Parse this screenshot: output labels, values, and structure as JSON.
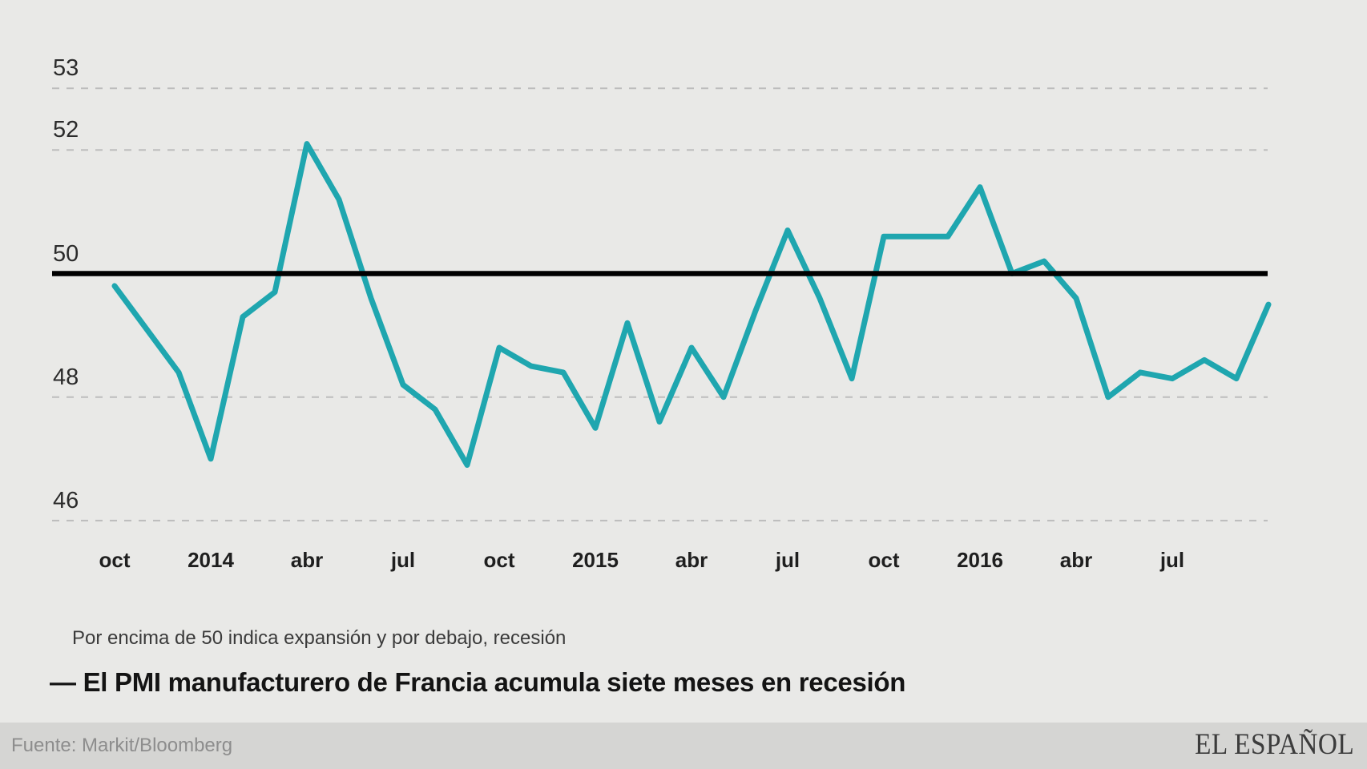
{
  "chart_data": {
    "type": "line",
    "title": "— El PMI manufacturero de Francia acumula siete meses en recesión",
    "subtitle": "Por encima de 50 indica expansión y por debajo, recesión",
    "series_name": "PMI manufacturero de Francia",
    "values": [
      49.8,
      49.1,
      48.4,
      47.0,
      49.3,
      49.7,
      52.1,
      51.2,
      49.6,
      48.2,
      47.8,
      46.9,
      48.8,
      48.5,
      48.4,
      47.5,
      49.2,
      47.6,
      48.8,
      48.0,
      49.4,
      50.7,
      49.6,
      48.3,
      50.6,
      50.6,
      50.6,
      51.4,
      50.0,
      50.2,
      49.6,
      48.0,
      48.4,
      48.3,
      48.6,
      48.3,
      49.5
    ],
    "x_tick_labels": [
      "oct",
      "2014",
      "abr",
      "jul",
      "oct",
      "2015",
      "abr",
      "jul",
      "oct",
      "2016",
      "abr",
      "jul"
    ],
    "x_tick_every": 3,
    "y_ticks": [
      53,
      52,
      50,
      48,
      46
    ],
    "ylim": [
      45.6,
      53.5
    ],
    "reference_line_value": 50,
    "grid": "horizontal-dashed",
    "legend_position": "none",
    "line_color": "#1FA6AF",
    "reference_line_color": "#000000"
  },
  "footer": {
    "source": "Fuente: Markit/Bloomberg",
    "logo": "EL ESPAÑOL"
  }
}
